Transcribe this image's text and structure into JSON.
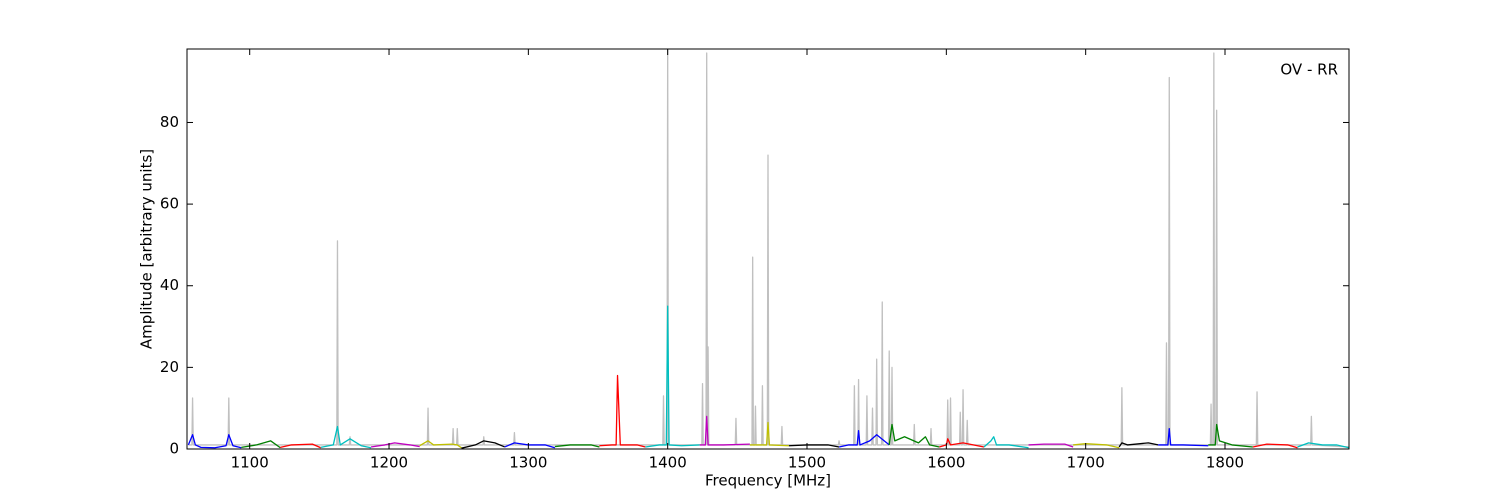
{
  "chart_data": {
    "type": "line",
    "annotation": "OV - RR",
    "xlabel": "Frequency [MHz]",
    "ylabel": "Amplitude [arbitrary units]",
    "xlim": [
      1055,
      1889
    ],
    "ylim": [
      0,
      98
    ],
    "xticks": [
      1100,
      1200,
      1300,
      1400,
      1500,
      1600,
      1700,
      1800
    ],
    "yticks": [
      0,
      20,
      40,
      60,
      80
    ],
    "series": [
      {
        "color": "#c0c0c0",
        "x": [
          1056,
          1058.5,
          1059,
          1059.5,
          1084.5,
          1085,
          1085.5,
          1162.5,
          1163,
          1163.5,
          1171.5,
          1172,
          1172.5,
          1227.5,
          1228,
          1228.5,
          1245.5,
          1246,
          1246.5,
          1248.5,
          1249,
          1249.5,
          1267.5,
          1268,
          1268.5,
          1289.5,
          1290,
          1290.5,
          1396.5,
          1397,
          1397.5,
          1399.5,
          1400,
          1400.5,
          1424.5,
          1425,
          1425.5,
          1427.5,
          1428,
          1428.5,
          1428.5,
          1429,
          1429.5,
          1448.5,
          1449,
          1449.5,
          1460.5,
          1461,
          1461.5,
          1462.5,
          1463,
          1463.5,
          1467.5,
          1468,
          1468.5,
          1471.5,
          1472,
          1472.5,
          1481.5,
          1482,
          1482.5,
          1522.5,
          1523,
          1523.5,
          1533.5,
          1534,
          1534.5,
          1536.5,
          1537,
          1537.5,
          1542.5,
          1543,
          1543.5,
          1546.5,
          1547,
          1547.5,
          1549.5,
          1550,
          1550.5,
          1553.5,
          1554,
          1554.5,
          1558.5,
          1559,
          1559.5,
          1560.5,
          1561,
          1561.5,
          1576.5,
          1577,
          1577.5,
          1588.5,
          1589,
          1589.5,
          1600.5,
          1601,
          1601.5,
          1602.5,
          1603,
          1603.5,
          1609.5,
          1610,
          1610.5,
          1611.5,
          1612,
          1612.5,
          1614.5,
          1615,
          1615.5,
          1725.5,
          1726,
          1726.5,
          1757.5,
          1758,
          1758.5,
          1759.5,
          1760,
          1760.5,
          1789.5,
          1790,
          1790.5,
          1791.5,
          1792,
          1792.5,
          1793.5,
          1794,
          1794.5,
          1822.5,
          1823,
          1823.5,
          1861.5,
          1862,
          1862.5,
          1889
        ],
        "values": [
          1,
          1,
          12.5,
          1,
          1,
          12.5,
          1,
          1,
          51,
          1,
          1,
          3,
          1,
          1,
          10,
          1,
          1,
          5,
          1,
          1,
          5,
          1,
          1,
          3,
          1,
          1,
          4,
          1,
          1,
          13,
          1,
          1,
          98,
          1,
          1,
          16,
          1,
          1,
          97,
          1,
          1,
          25,
          1,
          1,
          7.5,
          1,
          1,
          47,
          1,
          1,
          10.5,
          1,
          1,
          15.5,
          1,
          1,
          72,
          1,
          1,
          5.5,
          1,
          1,
          2,
          1,
          1,
          15.5,
          1,
          1,
          17,
          1,
          1,
          13,
          1,
          1,
          10,
          1,
          1,
          22,
          1,
          1,
          36,
          1,
          1,
          24,
          1,
          1,
          20,
          1,
          1,
          6,
          1,
          1,
          5,
          1,
          1,
          12,
          1,
          1,
          12.5,
          1,
          1,
          9,
          1,
          1,
          14.5,
          1,
          1,
          7,
          1,
          1,
          15,
          1,
          1,
          26,
          1,
          1,
          91,
          1,
          1,
          11,
          1,
          1,
          97,
          1,
          1,
          83,
          1,
          1,
          14,
          1,
          1,
          8,
          1,
          0.5
        ]
      },
      {
        "color": "#0000ff",
        "x": [
          1056,
          1059,
          1061,
          1065,
          1075,
          1083,
          1085,
          1088,
          1094
        ],
        "values": [
          1,
          3.5,
          1,
          0.4,
          0.3,
          0.8,
          3.5,
          0.8,
          0.3
        ]
      },
      {
        "color": "#008000",
        "x": [
          1094,
          1105,
          1115,
          1122
        ],
        "values": [
          0.4,
          1,
          2,
          0.3
        ]
      },
      {
        "color": "#ff0000",
        "x": [
          1122,
          1130,
          1145,
          1151
        ],
        "values": [
          0.4,
          1,
          1.2,
          0.3
        ]
      },
      {
        "color": "#00bfbf",
        "x": [
          1151,
          1160,
          1163,
          1165,
          1172,
          1180,
          1187
        ],
        "values": [
          0.4,
          1,
          5.5,
          1,
          2.5,
          0.8,
          0.3
        ]
      },
      {
        "color": "#bf00bf",
        "x": [
          1187,
          1197,
          1204,
          1215,
          1222
        ],
        "values": [
          0.5,
          1,
          1.5,
          1,
          0.6
        ]
      },
      {
        "color": "#bfbf00",
        "x": [
          1222,
          1228,
          1232,
          1245,
          1249,
          1252
        ],
        "values": [
          0.8,
          2,
          1,
          1.2,
          1,
          0.3
        ]
      },
      {
        "color": "#000000",
        "x": [
          1252,
          1262,
          1268,
          1276,
          1283
        ],
        "values": [
          0.2,
          1,
          2,
          1.5,
          0.5
        ]
      },
      {
        "color": "#0000ff",
        "x": [
          1283,
          1290,
          1300,
          1312,
          1319
        ],
        "values": [
          0.5,
          1.5,
          1,
          1,
          0.3
        ]
      },
      {
        "color": "#008000",
        "x": [
          1319,
          1330,
          1345,
          1351
        ],
        "values": [
          0.6,
          1,
          1,
          0.5
        ]
      },
      {
        "color": "#ff0000",
        "x": [
          1351,
          1360,
          1363,
          1364,
          1366,
          1378,
          1384
        ],
        "values": [
          0.8,
          1,
          1,
          18,
          1,
          1,
          0.5
        ]
      },
      {
        "color": "#00bfbf",
        "x": [
          1384,
          1394,
          1399,
          1400,
          1401,
          1410,
          1423
        ],
        "values": [
          0.5,
          1,
          1,
          35,
          1,
          0.8,
          1
        ]
      },
      {
        "color": "#bf00bf",
        "x": [
          1423,
          1427,
          1428,
          1429,
          1440,
          1459
        ],
        "values": [
          1,
          1,
          8,
          1,
          1,
          1.2
        ]
      },
      {
        "color": "#bfbf00",
        "x": [
          1459,
          1465,
          1471,
          1472,
          1473,
          1487
        ],
        "values": [
          1,
          1,
          1,
          6.5,
          1,
          0.8
        ]
      },
      {
        "color": "#000000",
        "x": [
          1487,
          1500,
          1515,
          1523
        ],
        "values": [
          0.8,
          1,
          1,
          0.5
        ]
      },
      {
        "color": "#0000ff",
        "x": [
          1523,
          1530,
          1536,
          1537,
          1538,
          1545,
          1550,
          1559
        ],
        "values": [
          0.5,
          1,
          1,
          4.5,
          1,
          2,
          3.5,
          1
        ]
      },
      {
        "color": "#008000",
        "x": [
          1559,
          1561,
          1563,
          1570,
          1580,
          1585,
          1588,
          1595
        ],
        "values": [
          1,
          6,
          2,
          3,
          1.5,
          3,
          1,
          0.5
        ]
      },
      {
        "color": "#ff0000",
        "x": [
          1595,
          1600,
          1601,
          1603,
          1612,
          1627
        ],
        "values": [
          0.5,
          1,
          2.5,
          1,
          1.5,
          0.5
        ]
      },
      {
        "color": "#00bfbf",
        "x": [
          1627,
          1632,
          1634,
          1636,
          1645,
          1659
        ],
        "values": [
          0.5,
          2,
          3,
          1,
          1,
          0.3
        ]
      },
      {
        "color": "#bf00bf",
        "x": [
          1659,
          1670,
          1685,
          1691
        ],
        "values": [
          1,
          1.2,
          1.2,
          0.5
        ]
      },
      {
        "color": "#bfbf00",
        "x": [
          1691,
          1700,
          1715,
          1724
        ],
        "values": [
          1,
          1.3,
          1,
          0.3
        ]
      },
      {
        "color": "#000000",
        "x": [
          1724,
          1726,
          1730,
          1745,
          1752
        ],
        "values": [
          0.5,
          1.5,
          1,
          1.5,
          1
        ]
      },
      {
        "color": "#0000ff",
        "x": [
          1752,
          1759,
          1760,
          1761,
          1770,
          1788
        ],
        "values": [
          1,
          1,
          5,
          1,
          1,
          0.8
        ]
      },
      {
        "color": "#008000",
        "x": [
          1788,
          1793,
          1794,
          1796,
          1805,
          1820
        ],
        "values": [
          1,
          1,
          6,
          2,
          1,
          0.5
        ]
      },
      {
        "color": "#ff0000",
        "x": [
          1820,
          1830,
          1845,
          1852
        ],
        "values": [
          0.5,
          1.2,
          1,
          0.3
        ]
      },
      {
        "color": "#00bfbf",
        "x": [
          1852,
          1860,
          1870,
          1880,
          1889
        ],
        "values": [
          0.5,
          1.5,
          1,
          1,
          0.3
        ]
      }
    ]
  }
}
